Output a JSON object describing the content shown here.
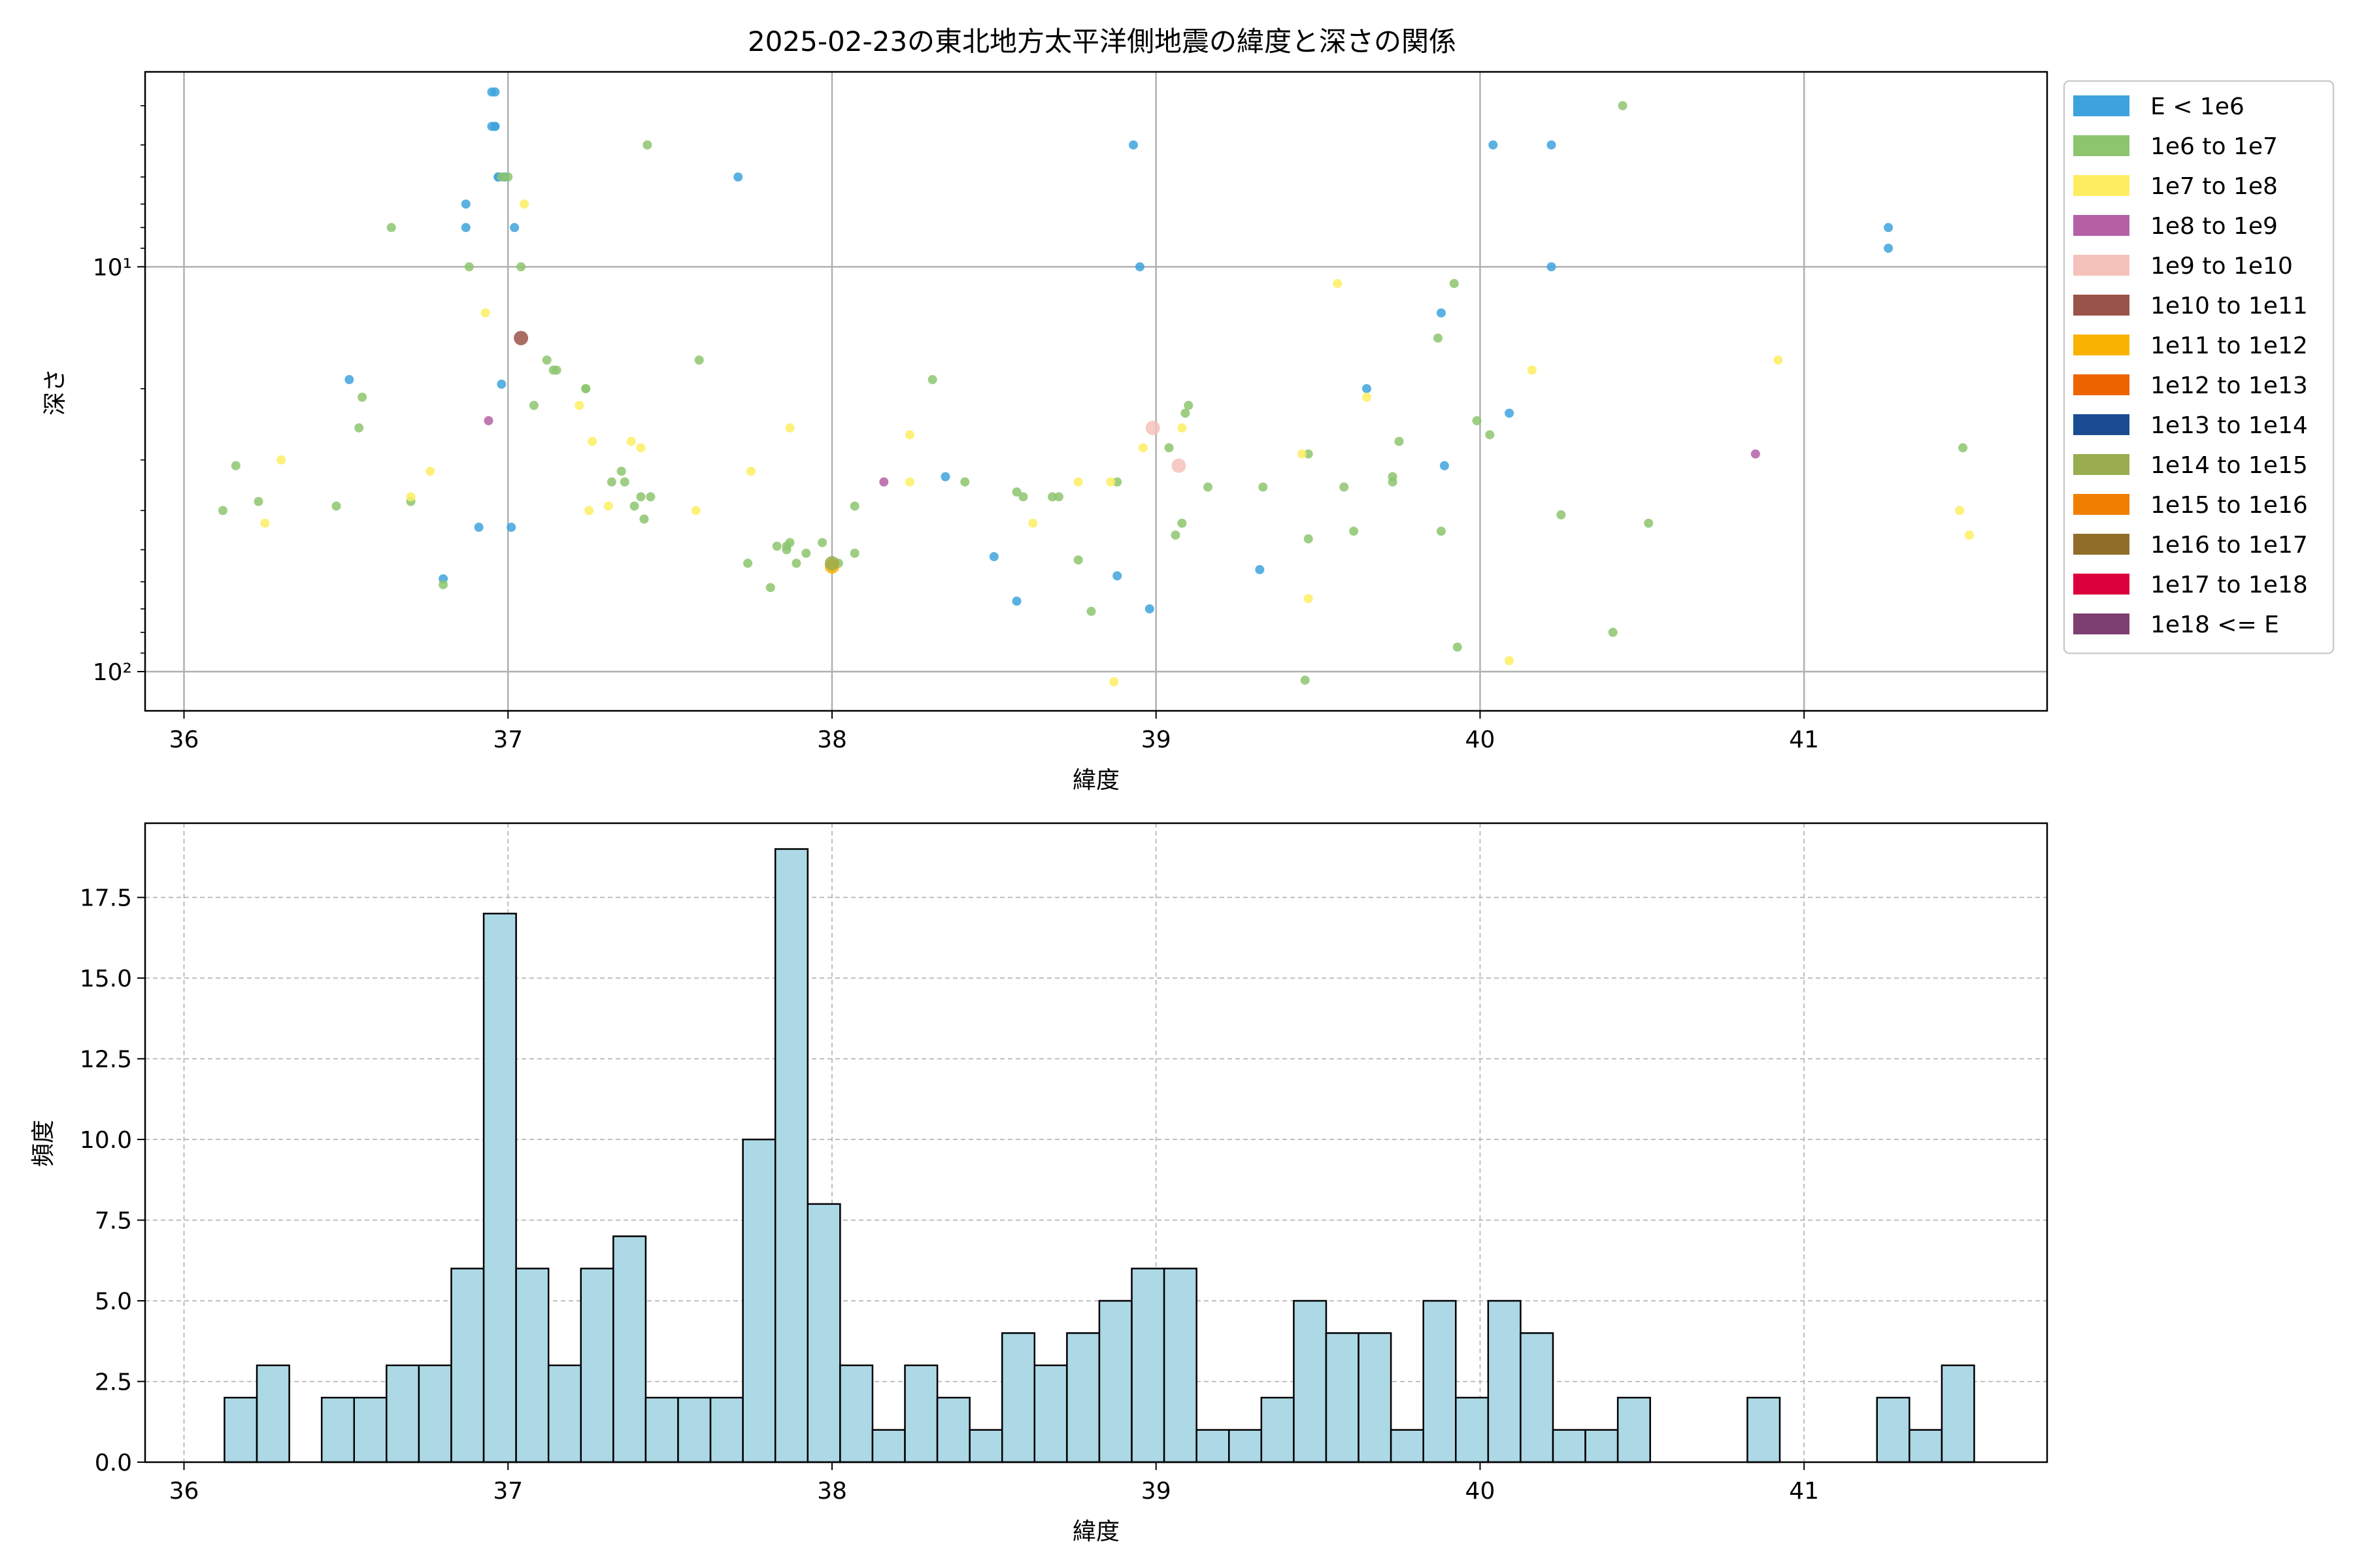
{
  "chart_data": [
    {
      "type": "scatter",
      "title": "2025-02-23の東北地方太平洋側地震の緯度と深さの関係",
      "xlabel": "緯度",
      "ylabel": "深さ",
      "xlim": [
        35.88,
        41.75
      ],
      "ylim": [
        125,
        3.3
      ],
      "y_scale": "log",
      "y_inverted": true,
      "grid": true,
      "x_ticks": [
        36,
        37,
        38,
        39,
        40,
        41
      ],
      "y_ticks": [
        {
          "value": 10,
          "label": "10¹"
        },
        {
          "value": 100,
          "label": "10²"
        }
      ],
      "legend": {
        "position": "right",
        "entries": [
          {
            "label": "E < 1e6",
            "color": "#3ea3dd"
          },
          {
            "label": "1e6 to 1e7",
            "color": "#8dc56f"
          },
          {
            "label": "1e7 to 1e8",
            "color": "#fdee61"
          },
          {
            "label": "1e8 to 1e9",
            "color": "#b560a5"
          },
          {
            "label": "1e9 to 1e10",
            "color": "#f5c2bb"
          },
          {
            "label": "1e10 to 1e11",
            "color": "#9a5348"
          },
          {
            "label": "1e11 to 1e12",
            "color": "#f9b200"
          },
          {
            "label": "1e12 to 1e13",
            "color": "#ee6400"
          },
          {
            "label": "1e13 to 1e14",
            "color": "#1b4c93"
          },
          {
            "label": "1e14 to 1e15",
            "color": "#99ad4f"
          },
          {
            "label": "1e15 to 1e16",
            "color": "#f07f00"
          },
          {
            "label": "1e16 to 1e17",
            "color": "#906d29"
          },
          {
            "label": "1e17 to 1e18",
            "color": "#dc003c"
          },
          {
            "label": "1e18 <= E",
            "color": "#7d3f72"
          }
        ]
      },
      "series": [
        {
          "name": "E < 1e6",
          "color": "#3ea3dd",
          "points": [
            [
              36.95,
              3.7
            ],
            [
              36.96,
              3.7
            ],
            [
              36.95,
              4.5
            ],
            [
              36.96,
              4.5
            ],
            [
              36.96,
              4.5
            ],
            [
              36.97,
              6
            ],
            [
              36.99,
              6
            ],
            [
              36.97,
              6
            ],
            [
              36.87,
              7
            ],
            [
              36.87,
              8
            ],
            [
              37.02,
              8
            ],
            [
              36.51,
              19
            ],
            [
              36.98,
              19.5
            ],
            [
              36.91,
              44
            ],
            [
              37.01,
              44
            ],
            [
              36.8,
              59
            ],
            [
              37.71,
              6
            ],
            [
              38.93,
              5
            ],
            [
              38.95,
              10
            ],
            [
              40.04,
              5
            ],
            [
              40.22,
              5
            ],
            [
              40.22,
              10
            ],
            [
              39.65,
              20
            ],
            [
              39.88,
              13
            ],
            [
              39.89,
              31
            ],
            [
              40.09,
              23
            ],
            [
              41.26,
              8
            ],
            [
              41.26,
              9
            ],
            [
              38.35,
              33
            ],
            [
              38.5,
              52
            ],
            [
              38.57,
              67
            ],
            [
              38.88,
              58
            ],
            [
              38.98,
              70
            ],
            [
              39.32,
              56
            ]
          ]
        },
        {
          "name": "1e6 to 1e7",
          "color": "#8dc56f",
          "points": [
            [
              36.12,
              40
            ],
            [
              36.16,
              31
            ],
            [
              36.23,
              38
            ],
            [
              36.47,
              39
            ],
            [
              36.55,
              21
            ],
            [
              36.54,
              25
            ],
            [
              36.64,
              8
            ],
            [
              36.7,
              38
            ],
            [
              36.8,
              61
            ],
            [
              36.88,
              10
            ],
            [
              36.98,
              6
            ],
            [
              37.0,
              6
            ],
            [
              37.04,
              10
            ],
            [
              37.08,
              22
            ],
            [
              37.12,
              17
            ],
            [
              37.15,
              18
            ],
            [
              37.14,
              18
            ],
            [
              37.24,
              20
            ],
            [
              37.24,
              20
            ],
            [
              37.35,
              32
            ],
            [
              37.36,
              34
            ],
            [
              37.32,
              34
            ],
            [
              37.39,
              39
            ],
            [
              37.41,
              37
            ],
            [
              37.42,
              42
            ],
            [
              37.44,
              37
            ],
            [
              37.43,
              5
            ],
            [
              37.59,
              17
            ],
            [
              37.74,
              54
            ],
            [
              37.83,
              49
            ],
            [
              37.81,
              62
            ],
            [
              37.86,
              49
            ],
            [
              37.87,
              48
            ],
            [
              37.86,
              50
            ],
            [
              37.89,
              54
            ],
            [
              37.92,
              51
            ],
            [
              37.97,
              48
            ],
            [
              38.02,
              54
            ],
            [
              38.07,
              51
            ],
            [
              38.07,
              39
            ],
            [
              38.31,
              19
            ],
            [
              38.41,
              34
            ],
            [
              38.57,
              36
            ],
            [
              38.59,
              37
            ],
            [
              38.68,
              37
            ],
            [
              38.7,
              37
            ],
            [
              38.76,
              53
            ],
            [
              38.8,
              71
            ],
            [
              38.88,
              34
            ],
            [
              39.04,
              28
            ],
            [
              39.06,
              46
            ],
            [
              39.08,
              43
            ],
            [
              39.09,
              23
            ],
            [
              39.1,
              22
            ],
            [
              39.16,
              35
            ],
            [
              39.33,
              35
            ],
            [
              39.47,
              29
            ],
            [
              39.47,
              47
            ],
            [
              39.46,
              105
            ],
            [
              39.58,
              35
            ],
            [
              39.61,
              45
            ],
            [
              39.73,
              33
            ],
            [
              39.73,
              34
            ],
            [
              39.75,
              27
            ],
            [
              39.87,
              15
            ],
            [
              39.88,
              45
            ],
            [
              39.92,
              11
            ],
            [
              39.93,
              87
            ],
            [
              39.99,
              24
            ],
            [
              40.03,
              26
            ],
            [
              40.25,
              41
            ],
            [
              40.41,
              80
            ],
            [
              40.44,
              4
            ],
            [
              40.52,
              43
            ],
            [
              41.49,
              28
            ]
          ]
        },
        {
          "name": "1e7 to 1e8",
          "color": "#fdee61",
          "points": [
            [
              36.25,
              43
            ],
            [
              36.3,
              30
            ],
            [
              36.7,
              37
            ],
            [
              36.76,
              32
            ],
            [
              36.93,
              13
            ],
            [
              37.05,
              7
            ],
            [
              37.22,
              22
            ],
            [
              37.25,
              40
            ],
            [
              37.26,
              27
            ],
            [
              37.31,
              39
            ],
            [
              37.38,
              27
            ],
            [
              37.41,
              28
            ],
            [
              37.58,
              40
            ],
            [
              37.75,
              32
            ],
            [
              37.87,
              25
            ],
            [
              38.24,
              26
            ],
            [
              38.24,
              34
            ],
            [
              38.62,
              43
            ],
            [
              38.76,
              34
            ],
            [
              38.86,
              34
            ],
            [
              38.87,
              106
            ],
            [
              38.96,
              28
            ],
            [
              39.08,
              25
            ],
            [
              39.45,
              29
            ],
            [
              39.47,
              66
            ],
            [
              39.56,
              11
            ],
            [
              39.65,
              21
            ],
            [
              40.09,
              94
            ],
            [
              40.16,
              18
            ],
            [
              40.92,
              17
            ],
            [
              41.48,
              40
            ],
            [
              41.51,
              46
            ]
          ]
        },
        {
          "name": "1e8 to 1e9",
          "color": "#b560a5",
          "points": [
            [
              36.94,
              24
            ],
            [
              38.16,
              34
            ],
            [
              40.85,
              29
            ]
          ]
        },
        {
          "name": "1e9 to 1e10",
          "color": "#f5c2bb",
          "points": [
            [
              38.99,
              25
            ],
            [
              39.07,
              31
            ]
          ]
        },
        {
          "name": "1e10 to 1e11",
          "color": "#9a5348",
          "points": [
            [
              37.04,
              15
            ]
          ]
        },
        {
          "name": "1e11 to 1e12",
          "color": "#f9b200",
          "points": [
            [
              38.0,
              55
            ]
          ]
        },
        {
          "name": "1e14 to 1e15",
          "color": "#99ad4f",
          "points": [
            [
              38.0,
              54
            ]
          ]
        }
      ]
    },
    {
      "type": "bar",
      "title": "",
      "xlabel": "緯度",
      "ylabel": "頻度",
      "xlim": [
        35.88,
        41.75
      ],
      "ylim": [
        0,
        19.8
      ],
      "grid": true,
      "bar_color": "#add8e6",
      "x_ticks": [
        36,
        37,
        38,
        39,
        40,
        41
      ],
      "y_ticks": [
        "0.0",
        "2.5",
        "5.0",
        "7.5",
        "10.0",
        "12.5",
        "15.0",
        "17.5"
      ],
      "bin_start": 36.125,
      "bin_width": 0.1,
      "values": [
        2,
        3,
        0,
        2,
        2,
        3,
        3,
        6,
        17,
        6,
        3,
        6,
        7,
        2,
        2,
        2,
        10,
        19,
        8,
        3,
        1,
        3,
        2,
        1,
        4,
        3,
        4,
        5,
        6,
        6,
        1,
        1,
        2,
        5,
        4,
        4,
        1,
        5,
        2,
        5,
        4,
        1,
        1,
        2,
        0,
        0,
        0,
        2,
        0,
        0,
        0,
        2,
        1,
        3
      ]
    }
  ]
}
